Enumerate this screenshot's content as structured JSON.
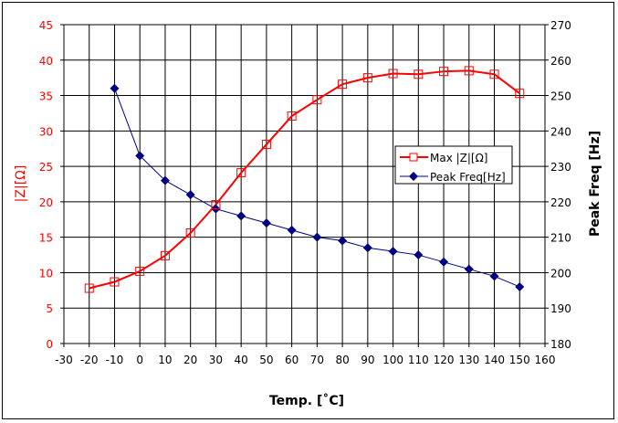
{
  "chart_data": {
    "type": "line",
    "title": "",
    "xlabel": "Temp. [˚C]",
    "ylabel": "|Z|[Ω]",
    "y2label": "Peak Freq [Hz]",
    "xlim": [
      -30,
      160
    ],
    "ylim": [
      0,
      45
    ],
    "y2lim": [
      180,
      270
    ],
    "xticks": [
      -30,
      -20,
      -10,
      0,
      10,
      20,
      30,
      40,
      50,
      60,
      70,
      80,
      90,
      100,
      110,
      120,
      130,
      140,
      150,
      160
    ],
    "yticks": [
      0,
      5,
      10,
      15,
      20,
      25,
      30,
      35,
      40,
      45
    ],
    "y2ticks": [
      180,
      190,
      200,
      210,
      220,
      230,
      240,
      250,
      260,
      270
    ],
    "grid": true,
    "legend_position": "right-middle",
    "colors": {
      "impedance": "#ff0000",
      "freq": "#000080",
      "left_axis_text": "#ff0000"
    },
    "series": [
      {
        "name": "Max |Z|[Ω]",
        "axis": "left",
        "marker": "square-open",
        "x": [
          -20,
          -10,
          0,
          10,
          20,
          30,
          40,
          50,
          60,
          70,
          80,
          90,
          100,
          110,
          120,
          130,
          140,
          150
        ],
        "values": [
          7.8,
          8.7,
          10.2,
          12.4,
          15.6,
          19.6,
          24.1,
          28.1,
          32.1,
          34.4,
          36.6,
          37.5,
          38.1,
          38.0,
          38.4,
          38.5,
          38.0,
          35.3
        ]
      },
      {
        "name": "Peak Freq[Hz]",
        "axis": "right",
        "marker": "diamond-filled",
        "x": [
          -10,
          0,
          10,
          20,
          30,
          40,
          50,
          60,
          70,
          80,
          90,
          100,
          110,
          120,
          130,
          140,
          150
        ],
        "values": [
          252,
          233,
          226,
          222,
          218,
          216,
          214,
          212,
          210,
          209,
          207,
          206,
          205,
          203,
          201,
          199,
          196
        ]
      }
    ]
  }
}
